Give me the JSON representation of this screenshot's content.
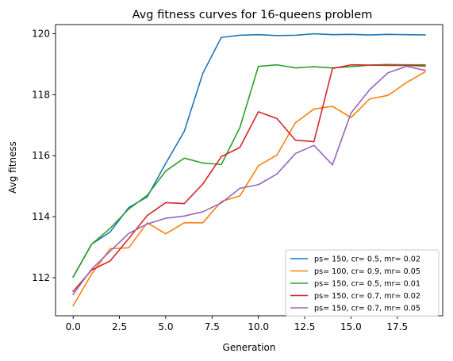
{
  "chart_data": {
    "type": "line",
    "title": "Avg fitness curves for 16-queens problem",
    "xlabel": "Generation",
    "ylabel": "Avg fitness",
    "xlim": [
      -0.95,
      19.95
    ],
    "ylim": [
      110.75,
      120.3
    ],
    "xticks": [
      0.0,
      2.5,
      5.0,
      7.5,
      10.0,
      12.5,
      15.0,
      17.5
    ],
    "xtick_labels": [
      "0.0",
      "2.5",
      "5.0",
      "7.5",
      "10.0",
      "12.5",
      "15.0",
      "17.5"
    ],
    "yticks": [
      112,
      114,
      116,
      118,
      120
    ],
    "ytick_labels": [
      "112",
      "114",
      "116",
      "118",
      "120"
    ],
    "grid": false,
    "legend_position": "lower-right",
    "x": [
      0,
      1,
      2,
      3,
      4,
      5,
      6,
      7,
      8,
      9,
      10,
      11,
      12,
      13,
      14,
      15,
      16,
      17,
      18,
      19
    ],
    "series": [
      {
        "name": "ps= 150, cr= 0.5, mr= 0.02",
        "color": "#1f77b4",
        "values": [
          112.02,
          113.1,
          113.5,
          114.3,
          114.65,
          115.75,
          116.8,
          118.7,
          119.88,
          119.95,
          119.97,
          119.94,
          119.95,
          120.0,
          119.97,
          119.98,
          119.96,
          119.98,
          119.97,
          119.96
        ]
      },
      {
        "name": "ps= 100, cr= 0.9, mr= 0.05",
        "color": "#ff7f0e",
        "values": [
          111.08,
          112.12,
          112.95,
          112.98,
          113.8,
          113.44,
          113.8,
          113.8,
          114.5,
          114.68,
          115.67,
          116.02,
          117.08,
          117.53,
          117.62,
          117.25,
          117.86,
          117.98,
          118.4,
          118.75
        ]
      },
      {
        "name": "ps= 150, cr= 0.5, mr= 0.01",
        "color": "#2ca02c",
        "values": [
          112.02,
          113.1,
          113.62,
          114.25,
          114.7,
          115.5,
          115.92,
          115.76,
          115.71,
          116.92,
          118.93,
          118.98,
          118.88,
          118.92,
          118.88,
          118.92,
          118.97,
          118.99,
          118.98,
          118.98
        ]
      },
      {
        "name": "ps= 150, cr= 0.7, mr= 0.02",
        "color": "#d62728",
        "values": [
          111.55,
          112.25,
          112.55,
          113.28,
          114.04,
          114.46,
          114.43,
          115.07,
          115.97,
          116.27,
          117.44,
          117.22,
          116.51,
          116.46,
          118.86,
          118.98,
          118.97,
          118.96,
          118.96,
          118.94
        ]
      },
      {
        "name": "ps= 150, cr= 0.7, mr= 0.05",
        "color": "#9467bd",
        "values": [
          111.45,
          112.28,
          112.87,
          113.45,
          113.76,
          113.95,
          114.02,
          114.16,
          114.45,
          114.93,
          115.05,
          115.4,
          116.07,
          116.34,
          115.7,
          117.4,
          118.16,
          118.72,
          118.93,
          118.8
        ]
      }
    ]
  }
}
